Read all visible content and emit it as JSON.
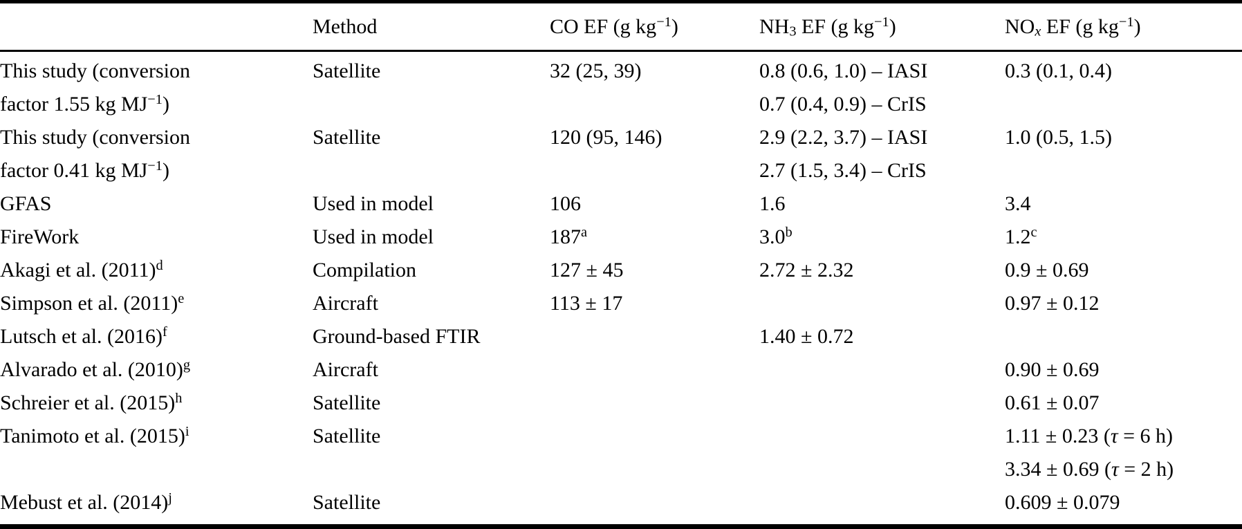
{
  "colors": {
    "background": "#ffffff",
    "text": "#000000",
    "rule": "#000000"
  },
  "table": {
    "columns": [
      {
        "key": "name",
        "label": ""
      },
      {
        "key": "method",
        "label": "Method"
      },
      {
        "key": "co_ef",
        "label": "CO EF (g kg^{−1})"
      },
      {
        "key": "nh3_ef",
        "label": "NH_{3} EF (g kg^{−1})"
      },
      {
        "key": "nox_ef",
        "label": "NO_{*x*} EF (g kg^{−1})"
      }
    ],
    "rows": [
      {
        "name": [
          "This study (conversion",
          "factor 1.55 kg MJ^{−1})"
        ],
        "method": [
          "Satellite"
        ],
        "co_ef": [
          "32 (25, 39)"
        ],
        "nh3_ef": [
          "0.8 (0.6, 1.0) – IASI",
          "0.7 (0.4, 0.9) – CrIS"
        ],
        "nox_ef": [
          "0.3 (0.1, 0.4)"
        ]
      },
      {
        "name": [
          "This study (conversion",
          "factor 0.41 kg MJ^{−1})"
        ],
        "method": [
          "Satellite"
        ],
        "co_ef": [
          "120 (95, 146)"
        ],
        "nh3_ef": [
          "2.9 (2.2, 3.7) – IASI",
          "2.7 (1.5, 3.4) – CrIS"
        ],
        "nox_ef": [
          "1.0 (0.5, 1.5)"
        ]
      },
      {
        "name": [
          "GFAS"
        ],
        "method": [
          "Used in model"
        ],
        "co_ef": [
          "106"
        ],
        "nh3_ef": [
          "1.6"
        ],
        "nox_ef": [
          "3.4"
        ]
      },
      {
        "name": [
          "FireWork"
        ],
        "method": [
          "Used in model"
        ],
        "co_ef": [
          "187^{a}"
        ],
        "nh3_ef": [
          "3.0^{b}"
        ],
        "nox_ef": [
          "1.2^{c}"
        ]
      },
      {
        "name": [
          "Akagi et al. (2011)^{d}"
        ],
        "method": [
          "Compilation"
        ],
        "co_ef": [
          "127 ± 45"
        ],
        "nh3_ef": [
          "2.72 ± 2.32"
        ],
        "nox_ef": [
          "0.9 ± 0.69"
        ]
      },
      {
        "name": [
          "Simpson et al. (2011)^{e}"
        ],
        "method": [
          "Aircraft"
        ],
        "co_ef": [
          "113 ± 17"
        ],
        "nh3_ef": [],
        "nox_ef": [
          "0.97 ± 0.12"
        ]
      },
      {
        "name": [
          "Lutsch et al. (2016)^{f}"
        ],
        "method": [
          "Ground-based FTIR"
        ],
        "co_ef": [],
        "nh3_ef": [
          "1.40 ± 0.72"
        ],
        "nox_ef": []
      },
      {
        "name": [
          "Alvarado et al. (2010)^{g}"
        ],
        "method": [
          "Aircraft"
        ],
        "co_ef": [],
        "nh3_ef": [],
        "nox_ef": [
          "0.90 ± 0.69"
        ]
      },
      {
        "name": [
          "Schreier et al. (2015)^{h}"
        ],
        "method": [
          "Satellite"
        ],
        "co_ef": [],
        "nh3_ef": [],
        "nox_ef": [
          "0.61 ± 0.07"
        ]
      },
      {
        "name": [
          "Tanimoto et al. (2015)^{i}"
        ],
        "method": [
          "Satellite"
        ],
        "co_ef": [],
        "nh3_ef": [],
        "nox_ef": [
          "1.11 ± 0.23 (~{τ} = 6 h)",
          "3.34 ± 0.69 (~{τ} = 2 h)"
        ]
      },
      {
        "name": [
          "Mebust et al. (2014)^{j}"
        ],
        "method": [
          "Satellite"
        ],
        "co_ef": [],
        "nh3_ef": [],
        "nox_ef": [
          "0.609 ± 0.079"
        ]
      }
    ]
  }
}
